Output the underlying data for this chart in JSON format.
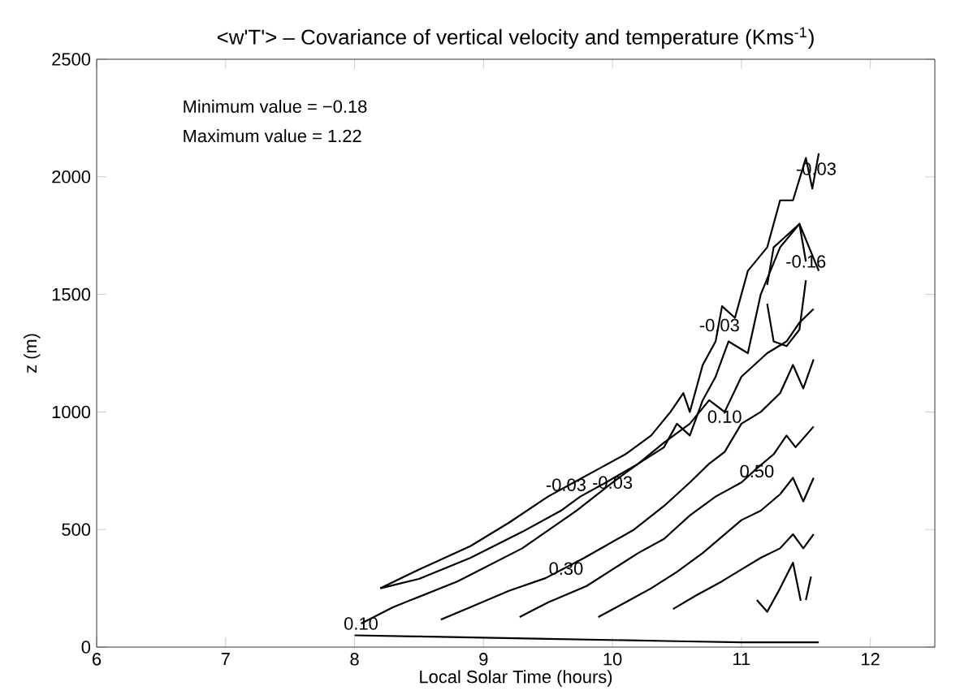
{
  "chart_data": {
    "type": "line",
    "title": "<w'T'> – Covariance of vertical velocity and temperature (Kms$^{-1}$)",
    "xlabel": "Local Solar Time (hours)",
    "ylabel": "z (m)",
    "xlim": [
      6,
      12.5
    ],
    "ylim": [
      0,
      2500
    ],
    "xticks": [
      6,
      7,
      8,
      9,
      10,
      11,
      12
    ],
    "yticks": [
      0,
      500,
      1000,
      1500,
      2000,
      2500
    ],
    "grid": false,
    "series": [
      {
        "color": "#000000",
        "x": [
          8.2,
          8.5,
          8.9,
          9.2,
          9.5,
          9.7,
          9.9,
          10.1,
          10.3,
          10.45,
          10.55,
          10.6,
          10.7,
          10.8,
          10.85,
          10.95,
          11.05,
          11.2,
          11.3,
          11.4,
          11.5,
          11.55,
          11.6
        ],
        "values": [
          250,
          330,
          430,
          530,
          640,
          700,
          760,
          820,
          900,
          1000,
          1080,
          1000,
          1200,
          1300,
          1450,
          1400,
          1600,
          1700,
          1900,
          1900,
          2080,
          1950,
          2100
        ]
      },
      {
        "color": "#000000",
        "x": [
          8.2,
          8.5,
          8.9,
          9.3,
          9.6,
          9.75,
          9.95,
          10.2,
          10.4,
          10.5,
          10.6,
          10.7,
          10.8,
          10.9,
          11.05,
          11.15,
          11.3,
          11.45,
          11.6
        ],
        "values": [
          250,
          290,
          380,
          490,
          580,
          640,
          700,
          780,
          850,
          950,
          900,
          1050,
          1150,
          1300,
          1250,
          1500,
          1700,
          1800,
          1600
        ]
      },
      {
        "color": "#000000",
        "x": [
          8.05,
          8.3,
          8.8,
          9.3,
          9.72,
          10.0,
          10.2,
          10.4,
          10.6,
          10.75,
          10.87,
          11.0,
          11.2,
          11.35,
          11.45,
          11.56
        ],
        "values": [
          100,
          170,
          280,
          420,
          580,
          700,
          780,
          870,
          950,
          1050,
          1000,
          1150,
          1250,
          1300,
          1380,
          1438
        ]
      },
      {
        "color": "#000000",
        "x": [
          8.67,
          8.9,
          9.2,
          9.48,
          9.78,
          10.16,
          10.4,
          10.6,
          10.75,
          10.87,
          11.0,
          11.15,
          11.3,
          11.4,
          11.48,
          11.56
        ],
        "values": [
          117,
          170,
          240,
          293,
          379,
          497,
          600,
          700,
          780,
          830,
          950,
          1000,
          1080,
          1200,
          1100,
          1224
        ]
      },
      {
        "color": "#000000",
        "x": [
          9.28,
          9.5,
          9.8,
          10.0,
          10.2,
          10.4,
          10.6,
          10.8,
          11.0,
          11.12,
          11.25,
          11.35,
          11.42,
          11.56
        ],
        "values": [
          128,
          190,
          260,
          330,
          400,
          460,
          560,
          640,
          700,
          760,
          820,
          900,
          850,
          938
        ]
      },
      {
        "color": "#000000",
        "x": [
          9.89,
          10.1,
          10.3,
          10.5,
          10.7,
          10.85,
          11.0,
          11.15,
          11.3,
          11.4,
          11.48,
          11.56
        ],
        "values": [
          128,
          190,
          250,
          320,
          400,
          470,
          540,
          580,
          650,
          720,
          620,
          720
        ]
      },
      {
        "color": "#000000",
        "x": [
          10.47,
          10.65,
          10.85,
          11.0,
          11.15,
          11.3,
          11.4,
          11.48,
          11.56
        ],
        "values": [
          162,
          220,
          280,
          330,
          380,
          420,
          480,
          420,
          480
        ]
      },
      {
        "color": "#000000",
        "x": [
          11.12,
          11.2,
          11.3,
          11.4,
          11.46
        ],
        "values": [
          200,
          150,
          250,
          359,
          197
        ]
      },
      {
        "color": "#000000",
        "x": [
          11.5,
          11.54
        ],
        "values": [
          200,
          300
        ]
      },
      {
        "color": "#000000",
        "x": [
          11.2,
          11.25,
          11.35,
          11.45,
          11.5
        ],
        "values": [
          1540,
          1700,
          1750,
          1800,
          1640
        ]
      },
      {
        "color": "#000000",
        "x": [
          11.2,
          11.25,
          11.35,
          11.45,
          11.5
        ],
        "values": [
          1460,
          1300,
          1280,
          1350,
          1560
        ]
      },
      {
        "color": "#000000",
        "x": [
          8.0,
          8.5,
          9.0,
          9.5,
          10.0,
          10.5,
          11.0,
          11.6
        ],
        "values": [
          50,
          45,
          40,
          35,
          30,
          25,
          20,
          20
        ]
      }
    ],
    "annotations": [
      "Minimum value = −0.18",
      "Maximum value =  1.22",
      {
        "text": "-0.03",
        "x": 9.64,
        "y": 690
      },
      {
        "text": "-0.03",
        "x": 10.0,
        "y": 700
      },
      {
        "text": "0.10",
        "x": 8.05,
        "y": 100
      },
      {
        "text": "0.30",
        "x": 9.64,
        "y": 334
      },
      {
        "text": "0.10",
        "x": 10.87,
        "y": 980
      },
      {
        "text": "0.50",
        "x": 11.12,
        "y": 748
      },
      {
        "text": "-0.03",
        "x": 10.83,
        "y": 1369
      },
      {
        "text": "-0.16",
        "x": 11.5,
        "y": 1640
      },
      {
        "text": "-0.03",
        "x": 11.58,
        "y": 2034
      }
    ]
  }
}
